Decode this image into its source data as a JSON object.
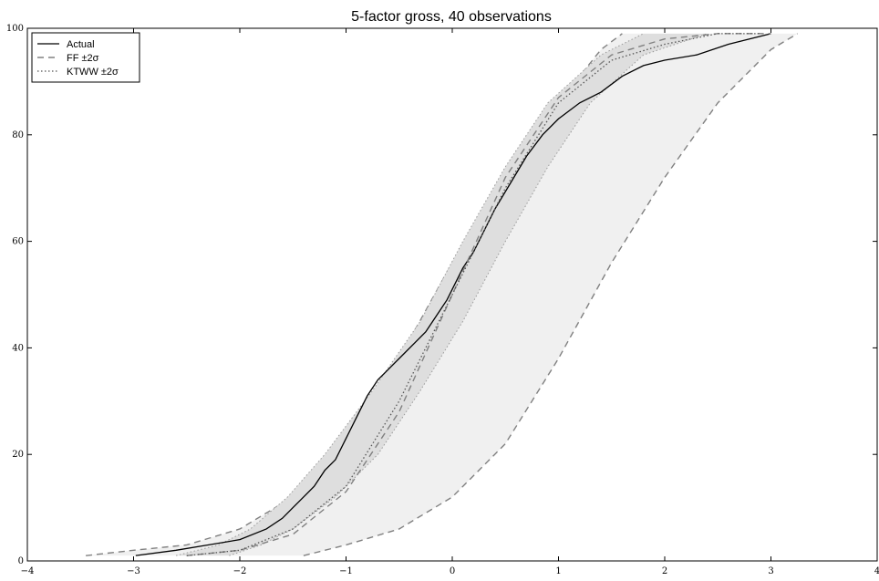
{
  "chart_data": {
    "type": "line",
    "title": "5-factor gross, 40 observations",
    "xlabel": "",
    "ylabel": "",
    "xlim": [
      -4,
      4
    ],
    "ylim": [
      0,
      100
    ],
    "xticks": [
      "−4",
      "−3",
      "−2",
      "−1",
      "0",
      "1",
      "2",
      "3",
      "4"
    ],
    "yticks": [
      "0",
      "20",
      "40",
      "60",
      "80",
      "100"
    ],
    "grid": false,
    "legend_position": "top-left",
    "colors": {
      "actual": "#000000",
      "ff": "#808080",
      "ktww": "#555555",
      "ff_band_fill": "#f0f0f0",
      "ktww_band_fill": "#dedede"
    },
    "series": [
      {
        "name": "Actual",
        "style": "solid",
        "x": [
          -2.98,
          -2.6,
          -2.3,
          -2.0,
          -1.75,
          -1.6,
          -1.5,
          -1.4,
          -1.3,
          -1.2,
          -1.1,
          -1.0,
          -0.9,
          -0.8,
          -0.7,
          -0.55,
          -0.45,
          -0.35,
          -0.25,
          -0.15,
          -0.05,
          0.0,
          0.1,
          0.2,
          0.3,
          0.4,
          0.55,
          0.7,
          0.85,
          1.0,
          1.2,
          1.4,
          1.6,
          1.8,
          2.0,
          2.3,
          2.6,
          3.0
        ],
        "y": [
          1,
          2,
          3,
          4,
          6,
          8,
          10,
          12,
          14,
          17,
          19,
          23,
          27,
          31,
          34,
          37,
          39,
          41,
          43,
          46,
          49,
          51,
          55,
          58,
          62,
          66,
          71,
          76,
          80,
          83,
          86,
          88,
          91,
          93,
          94,
          95,
          97,
          99
        ]
      },
      {
        "name": "FF ±2σ",
        "style": "dashed",
        "x": [
          -2.5,
          -2.0,
          -1.5,
          -1.0,
          -0.5,
          0.0,
          0.5,
          1.0,
          1.5,
          2.0,
          2.5,
          3.0
        ],
        "y": [
          1,
          2,
          5,
          13,
          28,
          50,
          72,
          87,
          95,
          98,
          99,
          99
        ]
      },
      {
        "name": "KTWW ±2σ",
        "style": "dotted",
        "x": [
          -2.5,
          -2.0,
          -1.5,
          -1.0,
          -0.5,
          0.0,
          0.5,
          1.0,
          1.5,
          2.0,
          2.5,
          2.9
        ],
        "y": [
          1,
          2,
          6,
          14,
          30,
          50,
          70,
          86,
          94,
          97,
          99,
          99
        ]
      }
    ],
    "bands": [
      {
        "name": "FF ±2σ",
        "lower_x": [
          -1.4,
          -1.2,
          -1.0,
          -0.5,
          0.0,
          0.5,
          1.0,
          1.5,
          2.0,
          2.5,
          3.0,
          3.25
        ],
        "upper_x": [
          -3.45,
          -3.0,
          -2.5,
          -2.0,
          -1.5,
          -1.0,
          -0.5,
          0.0,
          0.5,
          1.0,
          1.4,
          1.6
        ],
        "y": [
          1,
          2,
          3,
          6,
          12,
          22,
          38,
          56,
          72,
          86,
          96,
          99
        ]
      },
      {
        "name": "KTWW ±2σ",
        "lower_x": [
          -2.1,
          -1.8,
          -1.5,
          -1.1,
          -0.7,
          -0.3,
          0.1,
          0.5,
          0.9,
          1.3,
          1.8,
          2.4
        ],
        "upper_x": [
          -2.6,
          -2.2,
          -1.9,
          -1.55,
          -1.2,
          -0.75,
          -0.3,
          0.1,
          0.5,
          0.9,
          1.4,
          1.8
        ],
        "y": [
          1,
          3,
          6,
          12,
          20,
          32,
          45,
          60,
          74,
          86,
          95,
          99
        ]
      }
    ]
  }
}
